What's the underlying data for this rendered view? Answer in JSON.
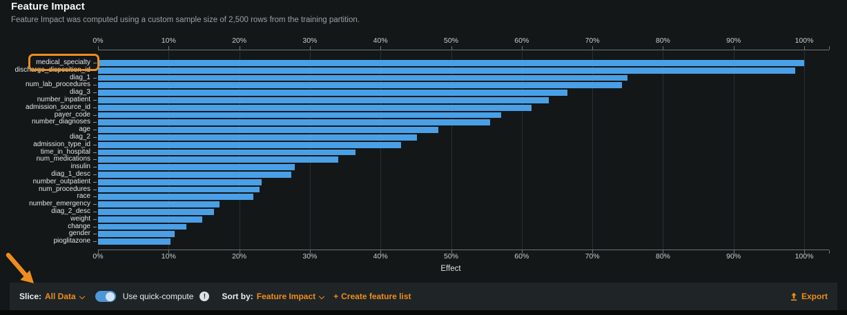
{
  "header": {
    "title": "Feature Impact",
    "subtitle": "Feature Impact was computed using a custom sample size of 2,500 rows from the training partition."
  },
  "chart_data": {
    "type": "bar",
    "orientation": "horizontal",
    "title": "Feature Impact",
    "xlabel": "Effect",
    "xlim": [
      0,
      100
    ],
    "x_tick_labels": [
      "0%",
      "10%",
      "20%",
      "30%",
      "40%",
      "50%",
      "60%",
      "70%",
      "80%",
      "90%",
      "100%"
    ],
    "grid": true,
    "bar_color": "#4aa0e6",
    "highlighted_feature": "medical_specialty",
    "categories": [
      "medical_specialty",
      "discharge_disposition_id",
      "diag_1",
      "num_lab_procedures",
      "diag_3",
      "number_inpatient",
      "admission_source_id",
      "payer_code",
      "number_diagnoses",
      "age",
      "diag_2",
      "admission_type_id",
      "time_in_hospital",
      "num_medications",
      "insulin",
      "diag_1_desc",
      "number_outpatient",
      "num_procedures",
      "race",
      "number_emergency",
      "diag_2_desc",
      "weight",
      "change",
      "gender",
      "pioglitazone"
    ],
    "values": [
      100,
      98.7,
      75.0,
      74.2,
      66.5,
      63.8,
      61.4,
      57.1,
      55.5,
      48.2,
      45.2,
      42.9,
      36.5,
      34.0,
      27.9,
      27.4,
      23.2,
      22.9,
      22.0,
      17.2,
      16.4,
      14.8,
      12.5,
      10.8,
      10.3
    ]
  },
  "footer": {
    "slice_label": "Slice:",
    "slice_value": "All Data",
    "quick_compute_label": "Use quick-compute",
    "quick_compute_on": true,
    "info_glyph": "!",
    "sort_by_label": "Sort by:",
    "sort_by_value": "Feature Impact",
    "create_plus": "+",
    "create_label": "Create feature list",
    "export_label": "Export"
  },
  "colors": {
    "accent_orange": "#ee8d1d",
    "bar_blue": "#4aa0e6",
    "background": "#131718",
    "footer_background": "#1f2426"
  }
}
